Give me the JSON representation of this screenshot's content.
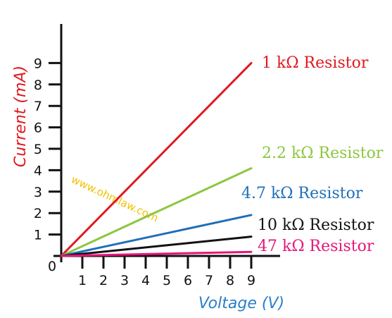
{
  "chart_data": {
    "type": "line",
    "xlabel": "Voltage (V)",
    "ylabel": "Current (mA)",
    "origin_label": "0",
    "x_ticks": [
      "1",
      "2",
      "3",
      "4",
      "5",
      "6",
      "7",
      "8",
      "9"
    ],
    "y_ticks": [
      "1",
      "2",
      "3",
      "4",
      "5",
      "6",
      "7",
      "8",
      "9"
    ],
    "xlim": [
      0,
      10
    ],
    "ylim": [
      0,
      10
    ],
    "grid": false,
    "xlabel_color": "#2a7fc9",
    "ylabel_color": "#e0191f",
    "watermark": "www.ohmlaw.com",
    "series": [
      {
        "name": "1 kΩ Resistor",
        "color": "#e0191f",
        "x": [
          0,
          9
        ],
        "y": [
          0,
          9
        ]
      },
      {
        "name": "2.2 kΩ Resistor",
        "color": "#8cc63f",
        "x": [
          0,
          9
        ],
        "y": [
          0,
          4.09
        ]
      },
      {
        "name": "4.7 kΩ Resistor",
        "color": "#1f6fb8",
        "x": [
          0,
          9
        ],
        "y": [
          0,
          1.91
        ]
      },
      {
        "name": "10 kΩ Resistor",
        "color": "#111111",
        "x": [
          0,
          9
        ],
        "y": [
          0,
          0.9
        ]
      },
      {
        "name": "47 kΩ Resistor",
        "color": "#e6157a",
        "x": [
          0,
          9
        ],
        "y": [
          0,
          0.19
        ]
      }
    ]
  }
}
